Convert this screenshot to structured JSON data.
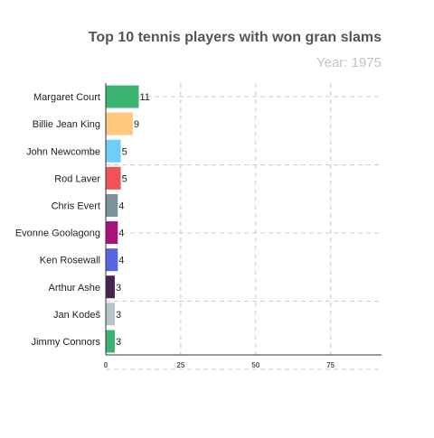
{
  "chart_data": {
    "type": "bar",
    "orientation": "horizontal",
    "title": "Top 10 tennis players with won gran slams",
    "subtitle_label": "Year: ",
    "subtitle_value": "1975",
    "categories": [
      "Margaret Court",
      "Billie Jean King",
      "John Newcombe",
      "Rod Laver",
      "Chris Evert",
      "Evonne Goolagong",
      "Ken Rosewall",
      "Arthur Ashe",
      "Jan Kodeš",
      "Jimmy Connors"
    ],
    "values": [
      11,
      9,
      5,
      5,
      4,
      4,
      4,
      3,
      3,
      3
    ],
    "colors": [
      "#3cb371",
      "#ffc87c",
      "#6ecff6",
      "#f0525a",
      "#7c939c",
      "#a8127c",
      "#5765e0",
      "#4a2352",
      "#b7c4cc",
      "#3cb371"
    ],
    "xlim": [
      0,
      92
    ],
    "xticks": [
      0,
      25,
      50,
      75
    ],
    "grid": true,
    "xlabel": "",
    "ylabel": ""
  }
}
